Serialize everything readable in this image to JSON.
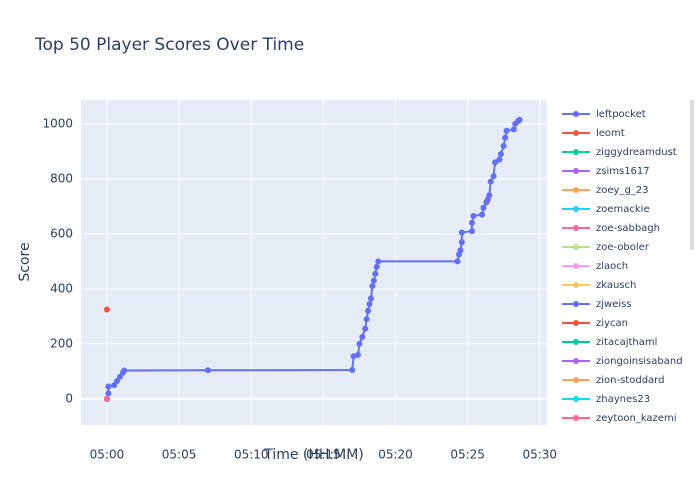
{
  "chart_data": {
    "type": "line",
    "title": "Top 50 Player Scores Over Time",
    "x_label": "Time (HH:MM)",
    "y_label": "Score",
    "xlim": [
      298.2,
      330.5
    ],
    "ylim": [
      -95,
      1087
    ],
    "xticks": [
      {
        "value": 300,
        "label": "05:00"
      },
      {
        "value": 305,
        "label": "05:05"
      },
      {
        "value": 310,
        "label": "05:10"
      },
      {
        "value": 315,
        "label": "05:15"
      },
      {
        "value": 320,
        "label": "05:20"
      },
      {
        "value": 325,
        "label": "05:25"
      },
      {
        "value": 330,
        "label": "05:30"
      }
    ],
    "yticks": [
      0,
      200,
      400,
      600,
      800,
      1000
    ],
    "grid": true,
    "legend": "right",
    "series": [
      {
        "name": "leftpocket",
        "color": "#636efa",
        "x": [
          300.0,
          300.1,
          300.1,
          300.5,
          300.7,
          300.9,
          301.1,
          301.2,
          307.0,
          317.0,
          317.1,
          317.4,
          317.5,
          317.7,
          317.9,
          318.0,
          318.1,
          318.2,
          318.3,
          318.4,
          318.5,
          318.6,
          318.7,
          318.8,
          324.3,
          324.4,
          324.5,
          324.6,
          324.6,
          325.3,
          325.3,
          325.4,
          326.0,
          326.1,
          326.3,
          326.4,
          326.5,
          326.6,
          326.8,
          326.9,
          327.2,
          327.3,
          327.5,
          327.6,
          327.7,
          328.2,
          328.3,
          328.5,
          328.6
        ],
        "values": [
          0,
          20,
          45,
          50,
          65,
          80,
          95,
          103,
          104,
          105,
          155,
          160,
          200,
          225,
          255,
          290,
          320,
          345,
          365,
          410,
          430,
          455,
          480,
          500,
          500,
          525,
          540,
          570,
          605,
          610,
          640,
          665,
          670,
          695,
          715,
          725,
          740,
          790,
          810,
          860,
          870,
          890,
          920,
          950,
          975,
          980,
          1000,
          1010,
          1015
        ]
      },
      {
        "name": "leomt",
        "color": "#EF553B",
        "x": [
          300.0
        ],
        "values": [
          325
        ]
      },
      {
        "name": "ziggydreamdust",
        "color": "#00cc96",
        "x": [
          300.0
        ],
        "values": [
          0
        ]
      },
      {
        "name": "zsims1617",
        "color": "#ab63fa",
        "x": [
          300.0
        ],
        "values": [
          0
        ]
      },
      {
        "name": "zoey_g_23",
        "color": "#FFA15A",
        "x": [
          300.0
        ],
        "values": [
          0
        ]
      },
      {
        "name": "zoemackie",
        "color": "#19d3f3",
        "x": [
          300.0
        ],
        "values": [
          0
        ]
      },
      {
        "name": "zoe-sabbagh",
        "color": "#FF6692",
        "x": [
          300.0
        ],
        "values": [
          0
        ]
      },
      {
        "name": "zoe-oboler",
        "color": "#B6E880",
        "x": [
          300.0
        ],
        "values": [
          0
        ]
      },
      {
        "name": "zlaoch",
        "color": "#FF97FF",
        "x": [
          300.0
        ],
        "values": [
          0
        ]
      },
      {
        "name": "zkausch",
        "color": "#FECB52",
        "x": [
          300.0
        ],
        "values": [
          0
        ]
      },
      {
        "name": "zjweiss",
        "color": "#636efa",
        "x": [
          300.0
        ],
        "values": [
          0
        ]
      },
      {
        "name": "ziycan",
        "color": "#EF553B",
        "x": [
          300.0
        ],
        "values": [
          0
        ]
      },
      {
        "name": "zitacajthaml",
        "color": "#00cc96",
        "x": [
          300.0
        ],
        "values": [
          0
        ]
      },
      {
        "name": "ziongoinsisaband",
        "color": "#ab63fa",
        "x": [
          300.0
        ],
        "values": [
          0
        ]
      },
      {
        "name": "zion-stoddard",
        "color": "#FFA15A",
        "x": [
          300.0
        ],
        "values": [
          0
        ]
      },
      {
        "name": "zhaynes23",
        "color": "#19d3f3",
        "x": [
          300.0
        ],
        "values": [
          0
        ]
      },
      {
        "name": "zeytoon_kazemi",
        "color": "#FF6692",
        "x": [
          300.0
        ],
        "values": [
          0
        ]
      }
    ]
  }
}
